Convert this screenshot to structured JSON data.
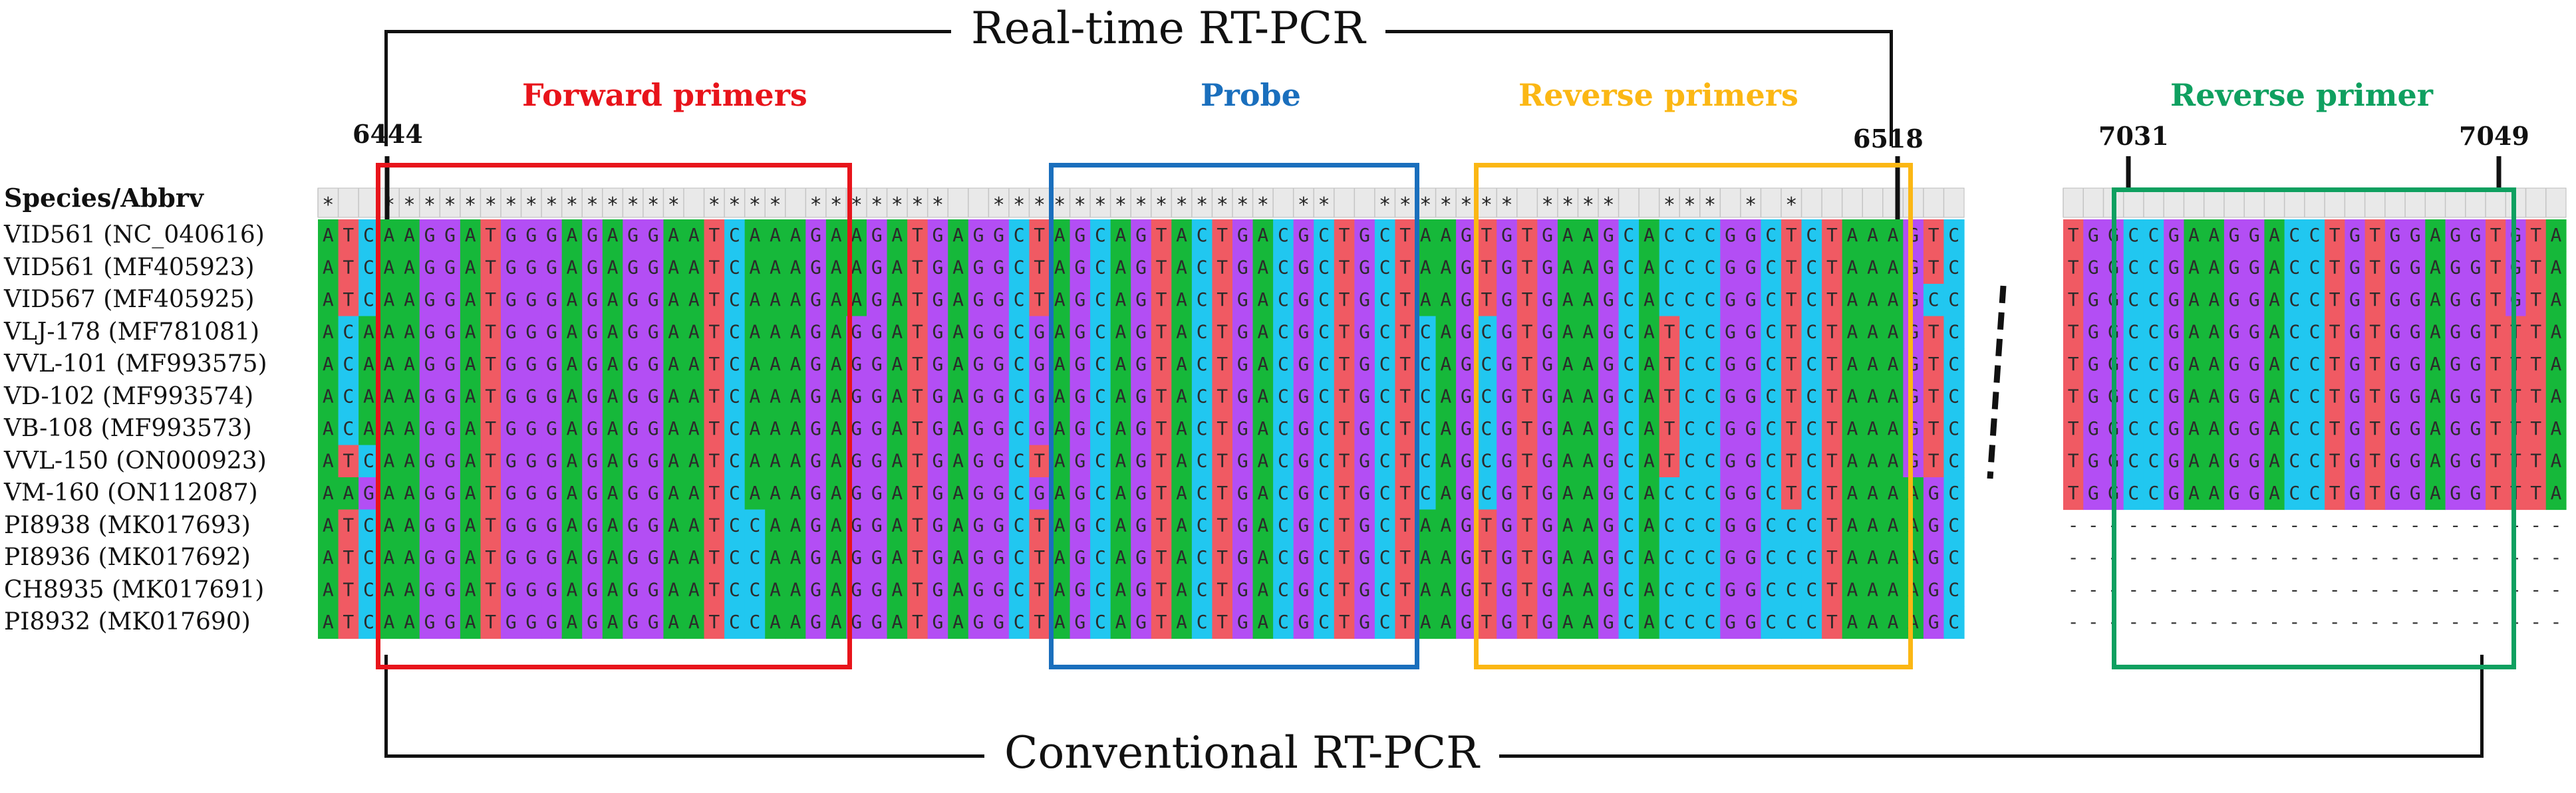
{
  "header_label": "Species/Abbrv",
  "top_title": "Real-time RT-PCR",
  "bottom_title": "Conventional RT-PCR",
  "regions": [
    {
      "label": "Forward primers",
      "color": "#e8141b"
    },
    {
      "label": "Probe",
      "color": "#1a6fbd"
    },
    {
      "label": "Reverse primers",
      "color": "#fbb714"
    },
    {
      "label": "Reverse primer",
      "color": "#0fa060"
    }
  ],
  "positions": {
    "p6444": "6444",
    "p6518": "6518",
    "p7031": "7031",
    "p7049": "7049"
  },
  "base_colors": {
    "A": "#16b83a",
    "C": "#21c7f0",
    "G": "#b34ef4",
    "T": "#f05a63"
  },
  "species": [
    "VID561 (NC_040616)",
    "VID561 (MF405923)",
    "VID567 (MF405925)",
    "VLJ-178 (MF781081)",
    "VVL-101 (MF993575)",
    "VD-102 (MF993574)",
    "VB-108 (MF993573)",
    "VVL-150 (ON000923)",
    "VM-160 (ON112087)",
    "PI8938 (MK017693)",
    "PI8936 (MK017692)",
    "CH8935 (MK017691)",
    "PI8932 (MK017690)"
  ],
  "block1": {
    "consensus": "*  *************** **** *******  ************** **  ******* ****  *** * *",
    "sequences": [
      "ATCAAGGATGGGAGAGGAATCAAAGAAGATGAGGCTAGCAGTACTGACGCTGCTAAGTGTGAAGCACCCGGCTCTAAAGTC",
      "ATCAAGGATGGGAGAGGAATCAAAGAAGATGAGGCTAGCAGTACTGACGCTGCTAAGTGTGAAGCACCCGGCTCTAAAGTC",
      "ATCAAGGATGGGAGAGGAATCAAAGAAGATGAGGCTAGCAGTACTGACGCTGCTAAGTGTGAAGCACCCGGCTCTAAAGCC",
      "ACAAAGGATGGGAGAGGAATCAAAGAGGATGAGGCGAGCAGTACTGACGCTGCTCAGCGTGAAGCATCCGGCTCTAAAGTC",
      "ACAAAGGATGGGAGAGGAATCAAAGAGGATGAGGCGAGCAGTACTGACGCTGCTCAGCGTGAAGCATCCGGCTCTAAAGTC",
      "ACAAAGGATGGGAGAGGAATCAAAGAGGATGAGGCGAGCAGTACTGACGCTGCTCAGCGTGAAGCATCCGGCTCTAAAGTC",
      "ACAAAGGATGGGAGAGGAATCAAAGAGGATGAGGCGAGCAGTACTGACGCTGCTCAGCGTGAAGCATCCGGCTCTAAAGTC",
      "ATCAAGGATGGGAGAGGAATCAAAGAGGATGAGGCTAGCAGTACTGACGCTGCTCAGCGTGAAGCATCCGGCTCTAAAGTC",
      "AAGAAGGATGGGAGAGGAATCAAAGAGGATGAGGCGAGCAGTACTGACGCTGCTCAGCGTGAAGCACCCGGCTCTAAAAGC",
      "ATCAAGGATGGGAGAGGAATCCAAGAGGATGAGGCTAGCAGTACTGACGCTGCTAAGTGTGAAGCACCCGGCCCTAAAAGC",
      "ATCAAGGATGGGAGAGGAATCCAAGAGGATGAGGCTAGCAGTACTGACGCTGCTAAGTGTGAAGCACCCGGCCCTAAAAGC",
      "ATCAAGGATGGGAGAGGAATCCAAGAGGATGAGGCTAGCAGTACTGACGCTGCTAAGTGTGAAGCACCCGGCCCTAAAAGC",
      "ATCAAGGATGGGAGAGGAATCCAAGAGGATGAGGCTAGCAGTACTGACGCTGCTAAGTGTGAAGCACCCGGCCCTAAAAGC"
    ]
  },
  "block2": {
    "consensus": "                      ",
    "sequences": [
      "TGGCCGAAGGACCTGTGGAGGTGTA",
      "TGGCCGAAGGACCTGTGGAGGTGTA",
      "TGGCCGAAGGACCTGTGGAGGTGTA",
      "TGGCCGAAGGACCTGTGGAGGTTTA",
      "TGGCCGAAGGACCTGTGGAGGTTTA",
      "TGGCCGAAGGACCTGTGGAGGTTTA",
      "TGGCCGAAGGACCTGTGGAGGTTTA",
      "TGGCCGAAGGACCTGTGGAGGTTTA",
      "TGGCCGAAGGACCTGTGGAGGTTTA",
      "-------------------------",
      "-------------------------",
      "-------------------------",
      "-------------------------"
    ]
  }
}
